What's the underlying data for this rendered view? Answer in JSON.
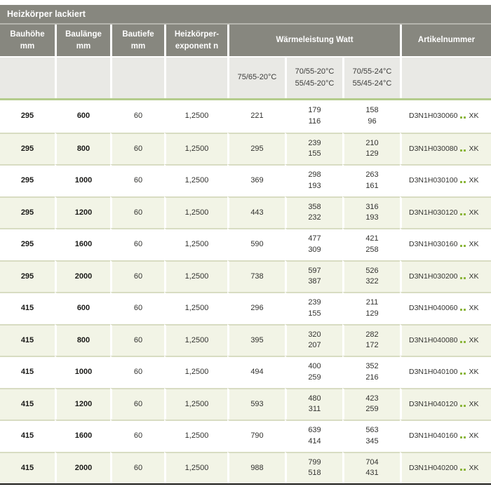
{
  "title": "Heizkörper lackiert",
  "columns": [
    {
      "line1": "Bauhöhe",
      "line2": "mm"
    },
    {
      "line1": "Baulänge",
      "line2": "mm"
    },
    {
      "line1": "Bautiefe",
      "line2": "mm"
    },
    {
      "line1": "Heizkörper-",
      "line2": "exponent n"
    },
    {
      "line1": "Wärmeleistung Watt",
      "line2": ""
    },
    {
      "line1": "Artikelnummer",
      "line2": ""
    }
  ],
  "subcolumns": [
    {
      "line1": "75/65-20°C",
      "line2": ""
    },
    {
      "line1": "70/55-20°C",
      "line2": "55/45-20°C"
    },
    {
      "line1": "70/55-24°C",
      "line2": "55/45-24°C"
    }
  ],
  "colors": {
    "header_gray": "#87877f",
    "subheader_gray": "#e9e9e5",
    "row_alt_green": "#f2f4e6",
    "divider_green": "#b4cc8c",
    "row_divider": "#d8dcc2",
    "dot_green": "#8cb63c"
  },
  "rows": [
    {
      "bauhoehe": "295",
      "baulaenge": "600",
      "bautiefe": "60",
      "exponent": "1,2500",
      "w7565": "221",
      "w7055_20_hi": "179",
      "w7055_20_lo": "116",
      "w7055_24_hi": "158",
      "w7055_24_lo": "96",
      "artikel": "D3N1H030060",
      "suffix": "XK"
    },
    {
      "bauhoehe": "295",
      "baulaenge": "800",
      "bautiefe": "60",
      "exponent": "1,2500",
      "w7565": "295",
      "w7055_20_hi": "239",
      "w7055_20_lo": "155",
      "w7055_24_hi": "210",
      "w7055_24_lo": "129",
      "artikel": "D3N1H030080",
      "suffix": "XK"
    },
    {
      "bauhoehe": "295",
      "baulaenge": "1000",
      "bautiefe": "60",
      "exponent": "1,2500",
      "w7565": "369",
      "w7055_20_hi": "298",
      "w7055_20_lo": "193",
      "w7055_24_hi": "263",
      "w7055_24_lo": "161",
      "artikel": "D3N1H030100",
      "suffix": "XK"
    },
    {
      "bauhoehe": "295",
      "baulaenge": "1200",
      "bautiefe": "60",
      "exponent": "1,2500",
      "w7565": "443",
      "w7055_20_hi": "358",
      "w7055_20_lo": "232",
      "w7055_24_hi": "316",
      "w7055_24_lo": "193",
      "artikel": "D3N1H030120",
      "suffix": "XK"
    },
    {
      "bauhoehe": "295",
      "baulaenge": "1600",
      "bautiefe": "60",
      "exponent": "1,2500",
      "w7565": "590",
      "w7055_20_hi": "477",
      "w7055_20_lo": "309",
      "w7055_24_hi": "421",
      "w7055_24_lo": "258",
      "artikel": "D3N1H030160",
      "suffix": "XK"
    },
    {
      "bauhoehe": "295",
      "baulaenge": "2000",
      "bautiefe": "60",
      "exponent": "1,2500",
      "w7565": "738",
      "w7055_20_hi": "597",
      "w7055_20_lo": "387",
      "w7055_24_hi": "526",
      "w7055_24_lo": "322",
      "artikel": "D3N1H030200",
      "suffix": "XK"
    },
    {
      "bauhoehe": "415",
      "baulaenge": "600",
      "bautiefe": "60",
      "exponent": "1,2500",
      "w7565": "296",
      "w7055_20_hi": "239",
      "w7055_20_lo": "155",
      "w7055_24_hi": "211",
      "w7055_24_lo": "129",
      "artikel": "D3N1H040060",
      "suffix": "XK"
    },
    {
      "bauhoehe": "415",
      "baulaenge": "800",
      "bautiefe": "60",
      "exponent": "1,2500",
      "w7565": "395",
      "w7055_20_hi": "320",
      "w7055_20_lo": "207",
      "w7055_24_hi": "282",
      "w7055_24_lo": "172",
      "artikel": "D3N1H040080",
      "suffix": "XK"
    },
    {
      "bauhoehe": "415",
      "baulaenge": "1000",
      "bautiefe": "60",
      "exponent": "1,2500",
      "w7565": "494",
      "w7055_20_hi": "400",
      "w7055_20_lo": "259",
      "w7055_24_hi": "352",
      "w7055_24_lo": "216",
      "artikel": "D3N1H040100",
      "suffix": "XK"
    },
    {
      "bauhoehe": "415",
      "baulaenge": "1200",
      "bautiefe": "60",
      "exponent": "1,2500",
      "w7565": "593",
      "w7055_20_hi": "480",
      "w7055_20_lo": "311",
      "w7055_24_hi": "423",
      "w7055_24_lo": "259",
      "artikel": "D3N1H040120",
      "suffix": "XK"
    },
    {
      "bauhoehe": "415",
      "baulaenge": "1600",
      "bautiefe": "60",
      "exponent": "1,2500",
      "w7565": "790",
      "w7055_20_hi": "639",
      "w7055_20_lo": "414",
      "w7055_24_hi": "563",
      "w7055_24_lo": "345",
      "artikel": "D3N1H040160",
      "suffix": "XK"
    },
    {
      "bauhoehe": "415",
      "baulaenge": "2000",
      "bautiefe": "60",
      "exponent": "1,2500",
      "w7565": "988",
      "w7055_20_hi": "799",
      "w7055_20_lo": "518",
      "w7055_24_hi": "704",
      "w7055_24_lo": "431",
      "artikel": "D3N1H040200",
      "suffix": "XK"
    }
  ]
}
